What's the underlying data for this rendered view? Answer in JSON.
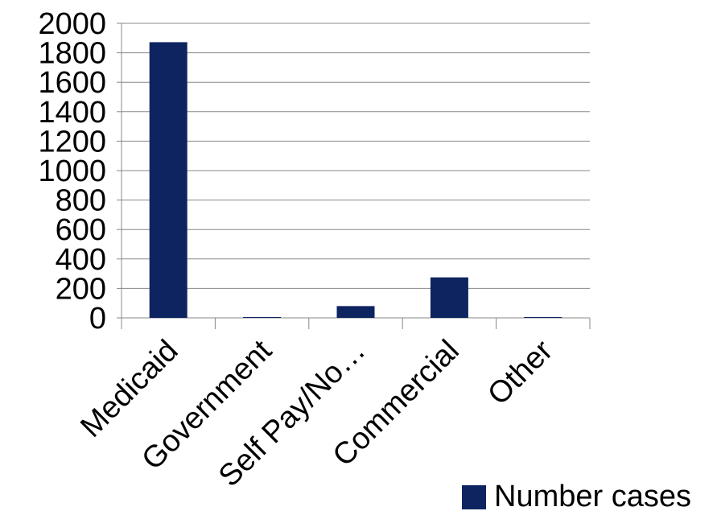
{
  "chart_data": {
    "type": "bar",
    "categories": [
      "Medicaid",
      "Government",
      "Self Pay/No…",
      "Commercial",
      "Other"
    ],
    "series": [
      {
        "name": "Number cases",
        "values": [
          1872,
          5,
          80,
          275,
          2
        ]
      }
    ],
    "yticks": [
      "0",
      "200",
      "400",
      "600",
      "800",
      "1000",
      "1200",
      "1400",
      "1600",
      "1800",
      "2000"
    ],
    "ylim": [
      0,
      2000
    ],
    "grid": true,
    "legend": "bottom-right",
    "bar_color": "#0d2460",
    "grid_color": "#888888"
  }
}
